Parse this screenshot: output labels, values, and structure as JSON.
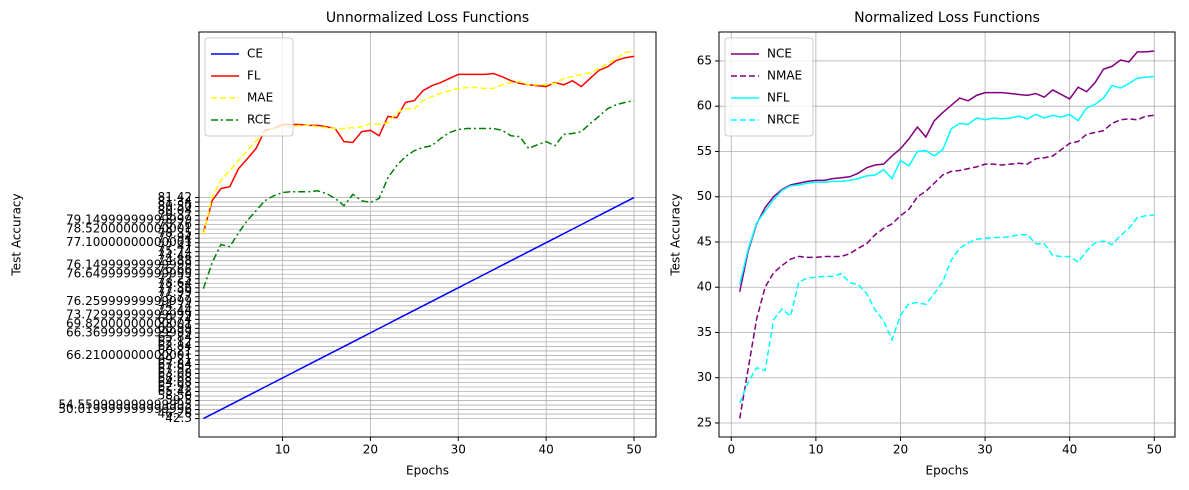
{
  "chart_data": [
    {
      "type": "line",
      "title": "Unnormalized Loss Functions",
      "xlabel": "Epochs",
      "ylabel": "Test Accuracy",
      "x": [
        1,
        2,
        3,
        4,
        5,
        6,
        7,
        8,
        9,
        10,
        11,
        12,
        13,
        14,
        15,
        16,
        17,
        18,
        19,
        20,
        21,
        22,
        23,
        24,
        25,
        26,
        27,
        28,
        29,
        30,
        31,
        32,
        33,
        34,
        35,
        36,
        37,
        38,
        39,
        40,
        41,
        42,
        43,
        44,
        45,
        46,
        47,
        48,
        49,
        50
      ],
      "xlim": [
        0.5,
        52.5
      ],
      "xticks": [
        10,
        20,
        30,
        40,
        50
      ],
      "ylim": [
        -4.08,
        85.7
      ],
      "yticks": [
        {
          "value": 0,
          "label": "42.3"
        },
        {
          "value": 1,
          "label": "46.26"
        },
        {
          "value": 2,
          "label": "50.019999999999996"
        },
        {
          "value": 3,
          "label": "54.559999999999995"
        },
        {
          "value": 4,
          "label": "59.5"
        },
        {
          "value": 5,
          "label": "58.50"
        },
        {
          "value": 6,
          "label": "65.42"
        },
        {
          "value": 7,
          "label": "62.92"
        },
        {
          "value": 8,
          "label": "64.08"
        },
        {
          "value": 9,
          "label": "68.08"
        },
        {
          "value": 10,
          "label": "63.08"
        },
        {
          "value": 11,
          "label": "67.92"
        },
        {
          "value": 12,
          "label": "67.84"
        },
        {
          "value": 13,
          "label": "69.21"
        },
        {
          "value": 14,
          "label": "66.21000000000001"
        },
        {
          "value": 15,
          "label": "60.21"
        },
        {
          "value": 16,
          "label": "62.84"
        },
        {
          "value": 17,
          "label": "62.12"
        },
        {
          "value": 18,
          "label": "65.84"
        },
        {
          "value": 19,
          "label": "66.36999999999999"
        },
        {
          "value": 20,
          "label": "68.99"
        },
        {
          "value": 21,
          "label": "69.82000000000001"
        },
        {
          "value": 22,
          "label": "69.74"
        },
        {
          "value": 23,
          "label": "73.72999999999999"
        },
        {
          "value": 24,
          "label": "72.44"
        },
        {
          "value": 25,
          "label": "74.74"
        },
        {
          "value": 26,
          "label": "76.25999999999999"
        },
        {
          "value": 27,
          "label": "76.77"
        },
        {
          "value": 28,
          "label": "77.99"
        },
        {
          "value": 29,
          "label": "77.36"
        },
        {
          "value": 30,
          "label": "78.64"
        },
        {
          "value": 31,
          "label": "77.23"
        },
        {
          "value": 32,
          "label": "76.64999999999999"
        },
        {
          "value": 33,
          "label": "76.66"
        },
        {
          "value": 34,
          "label": "76.14999999999999"
        },
        {
          "value": 35,
          "label": "74.88"
        },
        {
          "value": 36,
          "label": "74.44"
        },
        {
          "value": 37,
          "label": "75.74"
        },
        {
          "value": 38,
          "label": "77.47"
        },
        {
          "value": 39,
          "label": "77.10000000000001"
        },
        {
          "value": 40,
          "label": "77.94"
        },
        {
          "value": 41,
          "label": "78.35"
        },
        {
          "value": 42,
          "label": "78.52000000000001"
        },
        {
          "value": 43,
          "label": "78.76"
        },
        {
          "value": 44,
          "label": "79.14999999999999"
        },
        {
          "value": 45,
          "label": "79.37"
        },
        {
          "value": 46,
          "label": "80.04"
        },
        {
          "value": 47,
          "label": "80.50"
        },
        {
          "value": 48,
          "label": "81.34"
        },
        {
          "value": 49,
          "label": "81.42"
        }
      ],
      "grid": true,
      "legend": "upper left",
      "series": [
        {
          "name": "CE",
          "color": "blue",
          "linestyle": "solid",
          "values": [
            0,
            1,
            2,
            3,
            4,
            5,
            6,
            7,
            8,
            9,
            10,
            11,
            12,
            13,
            14,
            15,
            16,
            17,
            18,
            19,
            20,
            21,
            22,
            23,
            24,
            25,
            26,
            27,
            28,
            29,
            30,
            31,
            32,
            33,
            34,
            35,
            36,
            37,
            38,
            39,
            40,
            41,
            42,
            43,
            44,
            45,
            46,
            47,
            48,
            49
          ]
        },
        {
          "name": "FL",
          "color": "red",
          "linestyle": "solid",
          "values": [
            41.2,
            48.3,
            51.0,
            51.4,
            55.4,
            57.6,
            59.9,
            63.9,
            64.3,
            65.2,
            65.2,
            65.2,
            65.0,
            65.0,
            64.7,
            64.3,
            61.4,
            61.2,
            63.6,
            63.9,
            62.7,
            67.0,
            66.7,
            70.1,
            70.5,
            72.7,
            73.8,
            74.5,
            75.4,
            76.3,
            76.3,
            76.3,
            76.3,
            76.5,
            75.8,
            74.9,
            74.3,
            74.0,
            73.8,
            73.6,
            74.5,
            74.0,
            74.9,
            73.6,
            75.4,
            77.2,
            78.0,
            79.4,
            80.0,
            80.3
          ]
        },
        {
          "name": "MAE",
          "color": "yellow",
          "linestyle": "dashed",
          "values": [
            40.8,
            49.2,
            52.8,
            55.0,
            57.2,
            59.4,
            61.6,
            63.4,
            64.3,
            64.7,
            64.7,
            65.0,
            65.0,
            64.7,
            64.5,
            64.3,
            64.3,
            64.5,
            64.7,
            65.4,
            65.2,
            65.6,
            67.8,
            68.7,
            68.7,
            70.5,
            71.4,
            72.1,
            72.7,
            73.2,
            73.4,
            73.4,
            73.2,
            73.2,
            74.0,
            74.5,
            74.7,
            74.0,
            74.0,
            74.0,
            74.3,
            75.4,
            75.8,
            76.3,
            76.7,
            77.6,
            78.7,
            79.8,
            81.1,
            81.6
          ]
        },
        {
          "name": "RCE",
          "color": "green",
          "linestyle": "dashdot",
          "values": [
            28.8,
            34.6,
            38.6,
            38.1,
            41.2,
            43.9,
            46.1,
            48.3,
            49.4,
            50.1,
            50.3,
            50.3,
            50.3,
            50.5,
            49.9,
            48.8,
            47.2,
            49.7,
            48.3,
            47.9,
            48.8,
            53.4,
            56.1,
            58.1,
            59.4,
            60.1,
            60.5,
            62.1,
            63.4,
            64.1,
            64.3,
            64.3,
            64.3,
            64.3,
            63.9,
            62.7,
            62.5,
            59.9,
            60.7,
            61.4,
            60.5,
            63.0,
            63.2,
            63.6,
            65.4,
            67.0,
            68.7,
            69.6,
            70.1,
            70.5
          ]
        }
      ]
    },
    {
      "type": "line",
      "title": "Normalized Loss Functions",
      "xlabel": "Epochs",
      "ylabel": "Test Accuracy",
      "x": [
        1,
        2,
        3,
        4,
        5,
        6,
        7,
        8,
        9,
        10,
        11,
        12,
        13,
        14,
        15,
        16,
        17,
        18,
        19,
        20,
        21,
        22,
        23,
        24,
        25,
        26,
        27,
        28,
        29,
        30,
        31,
        32,
        33,
        34,
        35,
        36,
        37,
        38,
        39,
        40,
        41,
        42,
        43,
        44,
        45,
        46,
        47,
        48,
        49,
        50
      ],
      "xlim": [
        -1.45,
        52.45
      ],
      "xticks": [
        0,
        10,
        20,
        30,
        40,
        50
      ],
      "ylim": [
        23.45,
        68.2
      ],
      "yticks": [
        25,
        30,
        35,
        40,
        45,
        50,
        55,
        60,
        65
      ],
      "grid": true,
      "legend": "upper left",
      "series": [
        {
          "name": "NCE",
          "color": "purple",
          "linestyle": "solid",
          "values": [
            39.5,
            44,
            47,
            48.8,
            50,
            50.8,
            51.3,
            51.5,
            51.7,
            51.8,
            51.8,
            52,
            52.1,
            52.2,
            52.6,
            53.2,
            53.5,
            53.6,
            54.5,
            55.3,
            56.4,
            57.7,
            56.6,
            58.4,
            59.3,
            60.1,
            60.9,
            60.6,
            61.2,
            61.5,
            61.5,
            61.5,
            61.4,
            61.3,
            61.2,
            61.4,
            61,
            61.8,
            61.3,
            60.8,
            62.1,
            61.6,
            62.6,
            64.1,
            64.4,
            65.1,
            64.9,
            66,
            66,
            66.1
          ]
        },
        {
          "name": "NMAE",
          "color": "purple",
          "linestyle": "dashed",
          "values": [
            25.5,
            31,
            36.5,
            40,
            41.6,
            42.4,
            43.1,
            43.4,
            43.3,
            43.3,
            43.4,
            43.4,
            43.4,
            43.7,
            44.3,
            44.8,
            45.8,
            46.5,
            47,
            47.9,
            48.6,
            50,
            50.6,
            51.5,
            52.4,
            52.8,
            52.9,
            53.1,
            53.3,
            53.6,
            53.6,
            53.5,
            53.6,
            53.7,
            53.6,
            54.2,
            54.3,
            54.5,
            55.2,
            55.9,
            56.1,
            56.9,
            57.1,
            57.3,
            58.1,
            58.5,
            58.6,
            58.5,
            58.9,
            59
          ]
        },
        {
          "name": "NFL",
          "color": "cyan",
          "linestyle": "solid",
          "values": [
            40.3,
            44.2,
            47.1,
            48.4,
            49.7,
            50.7,
            51.2,
            51.3,
            51.5,
            51.6,
            51.6,
            51.7,
            51.7,
            51.8,
            52,
            52.3,
            52.4,
            53,
            52,
            54,
            53.4,
            55,
            55.1,
            54.5,
            55.2,
            57.5,
            58.1,
            58,
            58.7,
            58.5,
            58.7,
            58.6,
            58.7,
            58.9,
            58.6,
            59.1,
            58.7,
            59,
            58.8,
            59.1,
            58.4,
            59.8,
            60.2,
            60.9,
            62.3,
            62,
            62.5,
            63.1,
            63.2,
            63.3
          ]
        },
        {
          "name": "NRCE",
          "color": "cyan",
          "linestyle": "dashed",
          "values": [
            27.2,
            29.5,
            31.1,
            30.8,
            36.4,
            37.6,
            36.8,
            40.6,
            41,
            41.1,
            41.2,
            41.2,
            41.5,
            40.5,
            40.3,
            39.3,
            37.5,
            36.3,
            34.2,
            36.9,
            38.2,
            38.3,
            38.1,
            39.3,
            40.6,
            43,
            44.3,
            44.9,
            45.3,
            45.4,
            45.5,
            45.5,
            45.6,
            45.8,
            45.8,
            44.8,
            44.8,
            43.5,
            43.4,
            43.4,
            42.8,
            44,
            44.9,
            45.1,
            44.7,
            45.7,
            46.5,
            47.7,
            47.9,
            48
          ]
        }
      ]
    }
  ]
}
